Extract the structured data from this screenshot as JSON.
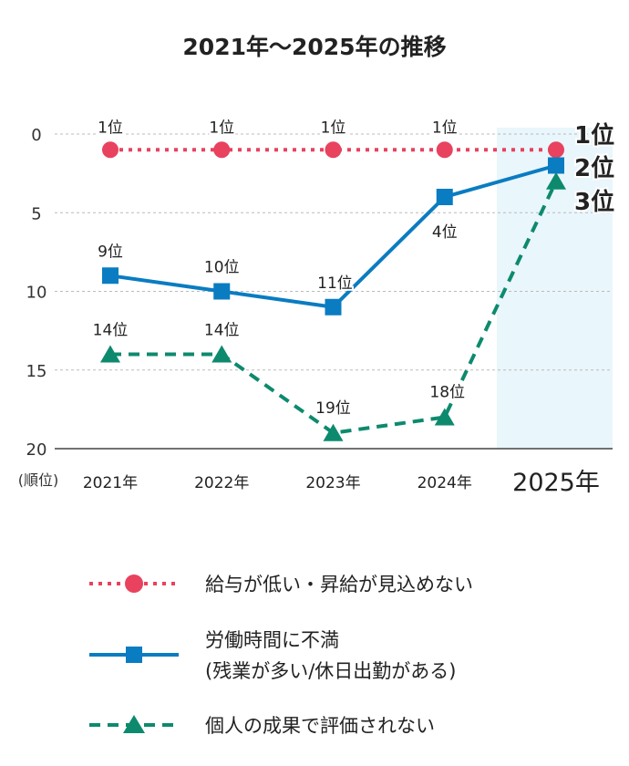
{
  "chart_data": {
    "type": "line",
    "title": "2021年～2025年の推移",
    "ylabel": "(順位)",
    "categories": [
      "2021年",
      "2022年",
      "2023年",
      "2024年",
      "2025年"
    ],
    "ylim": [
      0,
      20
    ],
    "y_inverted": true,
    "yticks": [
      0,
      5,
      10,
      15,
      20
    ],
    "grid": true,
    "highlight_category": "2025年",
    "legend_position": "bottom",
    "series": [
      {
        "name": "給与が低い・昇給が見込めない",
        "values": [
          1,
          1,
          1,
          1,
          1
        ],
        "labels": [
          "1位",
          "1位",
          "1位",
          "1位",
          "1位"
        ],
        "color": "#e8425f",
        "marker": "circle",
        "line": "dotted"
      },
      {
        "name": "労働時間に不満\n(残業が多い/休日出勤がある)",
        "name_lines": [
          "労働時間に不満",
          "(残業が多い/休日出勤がある)"
        ],
        "values": [
          9,
          10,
          11,
          4,
          2
        ],
        "labels": [
          "9位",
          "10位",
          "11位",
          "4位",
          "2位"
        ],
        "color": "#0a7cc1",
        "marker": "square",
        "line": "solid"
      },
      {
        "name": "個人の成果で評価されない",
        "values": [
          14,
          14,
          19,
          18,
          3
        ],
        "labels": [
          "14位",
          "14位",
          "19位",
          "18位",
          "3位"
        ],
        "color": "#0d8a6e",
        "marker": "triangle",
        "line": "dashed"
      }
    ]
  }
}
